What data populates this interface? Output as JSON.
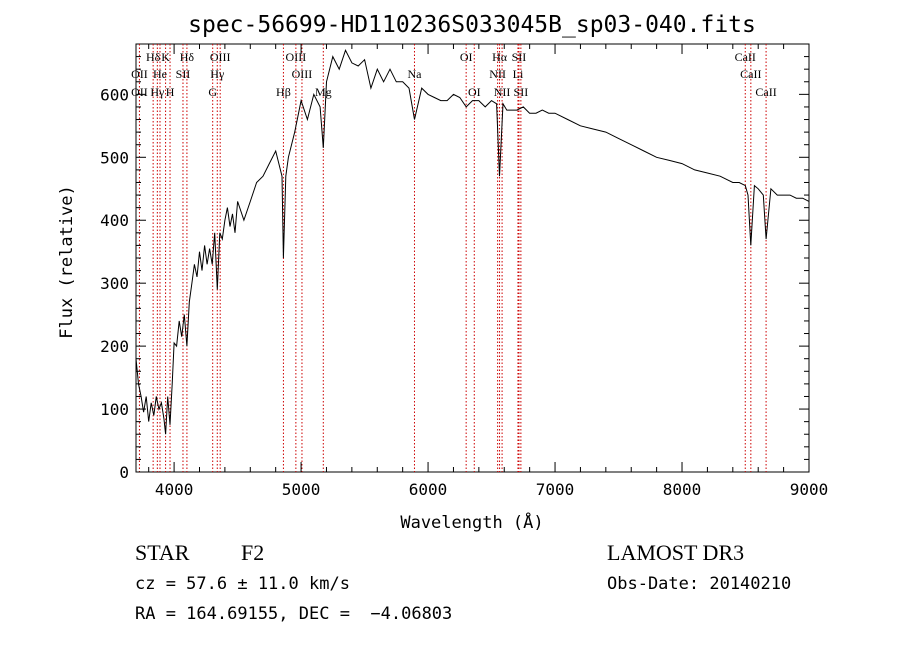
{
  "chart_data": {
    "type": "line",
    "title": "spec-56699-HD110236S033045B_sp03-040.fits",
    "xlabel": "Wavelength (Å)",
    "ylabel": "Flux (relative)",
    "xlim": [
      3700,
      9000
    ],
    "ylim": [
      0,
      680
    ],
    "x_ticks": [
      4000,
      5000,
      6000,
      7000,
      8000,
      9000
    ],
    "y_ticks": [
      0,
      100,
      200,
      300,
      400,
      500,
      600
    ],
    "grid": false,
    "line_color": "#000000",
    "marker_color": "#cc0000",
    "spectrum": {
      "x": [
        3700,
        3720,
        3740,
        3760,
        3780,
        3800,
        3820,
        3840,
        3860,
        3880,
        3900,
        3920,
        3933,
        3950,
        3968,
        3985,
        4000,
        4020,
        4040,
        4060,
        4080,
        4101,
        4120,
        4140,
        4160,
        4180,
        4200,
        4220,
        4240,
        4260,
        4280,
        4300,
        4320,
        4340,
        4360,
        4380,
        4400,
        4420,
        4440,
        4460,
        4480,
        4500,
        4550,
        4600,
        4650,
        4700,
        4750,
        4800,
        4850,
        4861,
        4880,
        4900,
        4950,
        5000,
        5050,
        5100,
        5150,
        5175,
        5200,
        5250,
        5300,
        5350,
        5400,
        5450,
        5500,
        5550,
        5600,
        5650,
        5700,
        5750,
        5800,
        5850,
        5893,
        5950,
        6000,
        6050,
        6100,
        6150,
        6200,
        6250,
        6300,
        6350,
        6400,
        6450,
        6500,
        6540,
        6563,
        6590,
        6620,
        6650,
        6700,
        6750,
        6800,
        6850,
        6900,
        6950,
        7000,
        7100,
        7200,
        7300,
        7400,
        7500,
        7600,
        7700,
        7800,
        7900,
        8000,
        8100,
        8200,
        8300,
        8400,
        8450,
        8498,
        8520,
        8542,
        8570,
        8600,
        8640,
        8662,
        8700,
        8750,
        8800,
        8850,
        8900,
        8950,
        9000
      ],
      "y": [
        180,
        140,
        120,
        95,
        120,
        80,
        110,
        90,
        120,
        100,
        110,
        85,
        60,
        120,
        75,
        140,
        205,
        200,
        240,
        215,
        250,
        200,
        270,
        300,
        330,
        310,
        350,
        320,
        360,
        330,
        355,
        330,
        380,
        290,
        380,
        370,
        400,
        420,
        390,
        410,
        380,
        430,
        400,
        430,
        460,
        470,
        490,
        510,
        470,
        340,
        470,
        500,
        540,
        590,
        560,
        600,
        580,
        515,
        620,
        660,
        640,
        670,
        650,
        645,
        655,
        610,
        640,
        620,
        640,
        620,
        620,
        610,
        560,
        610,
        600,
        595,
        590,
        590,
        600,
        595,
        580,
        590,
        590,
        580,
        590,
        585,
        470,
        585,
        575,
        575,
        575,
        580,
        570,
        570,
        575,
        570,
        570,
        560,
        550,
        545,
        540,
        530,
        520,
        510,
        500,
        495,
        490,
        480,
        475,
        470,
        460,
        460,
        455,
        440,
        360,
        455,
        450,
        440,
        370,
        450,
        440,
        440,
        440,
        435,
        435,
        430
      ]
    },
    "lines_top": [
      {
        "label": "Hδ",
        "x": 3835
      },
      {
        "label": "K",
        "x": 3933
      },
      {
        "label": "Hδ",
        "x": 4101
      },
      {
        "label": "OIII",
        "x": 4363
      },
      {
        "label": "OIII",
        "x": 4959
      },
      {
        "label": "OI",
        "x": 6300
      },
      {
        "label": "Hα",
        "x": 6563
      },
      {
        "label": "SII",
        "x": 6716
      },
      {
        "label": "CaII",
        "x": 8498
      }
    ],
    "lines_row2": [
      {
        "label": "OII",
        "x": 3727
      },
      {
        "label": "He",
        "x": 3889
      },
      {
        "label": "SII",
        "x": 4070
      },
      {
        "label": "Hγ",
        "x": 4340
      },
      {
        "label": "OIII",
        "x": 5007
      },
      {
        "label": "Na",
        "x": 5893
      },
      {
        "label": "NII",
        "x": 6548
      },
      {
        "label": "Li",
        "x": 6708
      },
      {
        "label": "CaII",
        "x": 8542
      }
    ],
    "lines_row3": [
      {
        "label": "OII",
        "x": 3727
      },
      {
        "label": "Hγ",
        "x": 3868
      },
      {
        "label": "H",
        "x": 3968
      },
      {
        "label": "G",
        "x": 4304
      },
      {
        "label": "Hβ",
        "x": 4861
      },
      {
        "label": "Mg",
        "x": 5175
      },
      {
        "label": "OI",
        "x": 6364
      },
      {
        "label": "NII",
        "x": 6583
      },
      {
        "label": "SII",
        "x": 6731
      },
      {
        "label": "CaII",
        "x": 8662
      }
    ]
  },
  "info": {
    "class": "STAR",
    "subclass": "F2",
    "survey": "LAMOST DR3",
    "cz": "cz = 57.6 ± 11.0 km/s",
    "obs_date": "Obs-Date: 20140210",
    "radec": "RA = 164.69155, DEC =  −4.06803"
  }
}
